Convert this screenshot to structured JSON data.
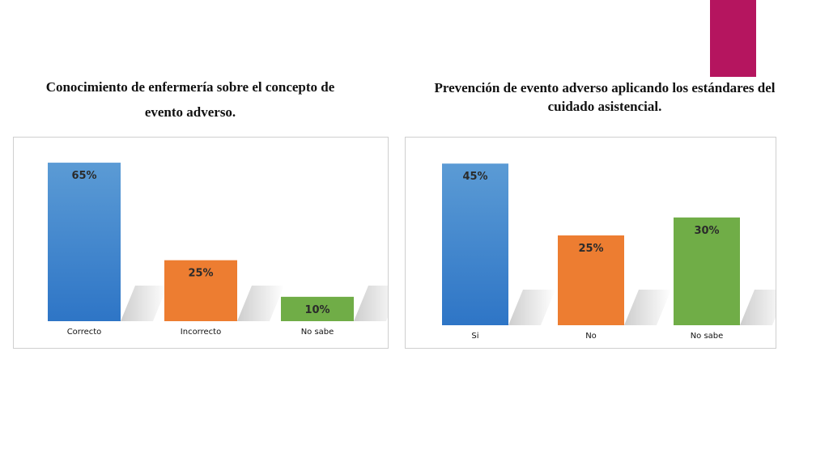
{
  "colors": {
    "accent": "#b5155f",
    "blue_top": "#5b9bd5",
    "blue_bottom": "#2e75c6",
    "orange": "#ed7d31",
    "green": "#70ad47",
    "shadow": "#c8c8c8"
  },
  "chart_data": [
    {
      "type": "bar",
      "title": "Conocimiento de enfermería sobre el concepto de evento adverso.",
      "title_line1": "Conocimiento de enfermería sobre el concepto de",
      "title_line2": "evento adverso.",
      "categories": [
        "Correcto",
        "Incorrecto",
        "No sabe"
      ],
      "values": [
        65,
        25,
        10
      ],
      "labels": [
        "65%",
        "25%",
        "10%"
      ],
      "ylim": [
        0,
        70
      ],
      "colors": [
        "blue",
        "orange",
        "green"
      ],
      "grid": false,
      "legend": "none"
    },
    {
      "type": "bar",
      "title": "Prevención de evento adverso aplicando los estándares del cuidado asistencial.",
      "title_line1": "Prevención de evento adverso aplicando los estándares del",
      "title_line2": "cuidado asistencial.",
      "categories": [
        "Si",
        "No",
        "No sabe"
      ],
      "values": [
        45,
        25,
        30
      ],
      "labels": [
        "45%",
        "25%",
        "30%"
      ],
      "ylim": [
        0,
        50
      ],
      "colors": [
        "blue",
        "orange",
        "green"
      ],
      "grid": false,
      "legend": "none"
    }
  ]
}
